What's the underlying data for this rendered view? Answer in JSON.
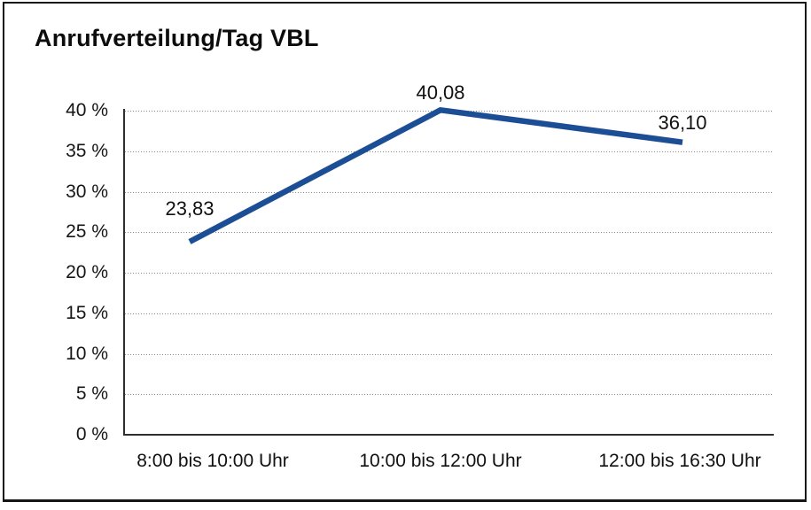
{
  "page": {
    "background": "#ffffff",
    "frame_color": "#161616"
  },
  "chart_data": {
    "type": "line",
    "title": "Anrufverteilung/Tag VBL",
    "categories": [
      "8:00 bis 10:00 Uhr",
      "10:00 bis 12:00 Uhr",
      "12:00 bis 16:30 Uhr"
    ],
    "series": [
      {
        "values": [
          23.83,
          40.08,
          36.1
        ],
        "point_labels": [
          "23,83",
          "40,08",
          "36,10"
        ],
        "color": "#1b4e94"
      }
    ],
    "xlabel": "",
    "ylabel": "",
    "ylim": [
      0,
      40
    ],
    "ytick_step": 5,
    "ytick_labels": [
      "0 %",
      "5 %",
      "10 %",
      "15 %",
      "20 %",
      "25 %",
      "30 %",
      "35 %",
      "40 %"
    ],
    "grid": "horizontal-dotted",
    "gridline_color": "#8a8a8a",
    "axis_color": "#2e2e2e",
    "legend_position": "none"
  }
}
